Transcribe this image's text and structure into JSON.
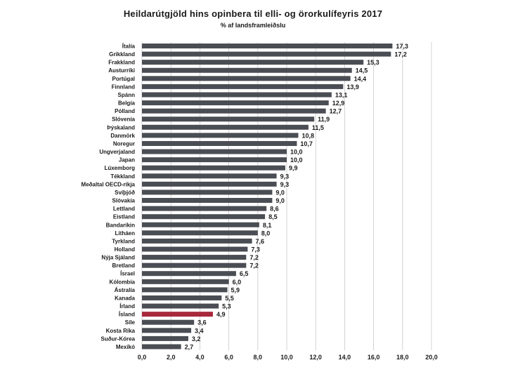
{
  "chart_data": {
    "type": "bar",
    "orientation": "horizontal",
    "title": "Heildarútgjöld hins opinbera til elli- og örorkulífeyris 2017",
    "subtitle": "% af landsframleiðslu",
    "xlim": [
      0,
      20
    ],
    "xticks": [
      "0,0",
      "2,0",
      "4,0",
      "6,0",
      "8,0",
      "10,0",
      "12,0",
      "14,0",
      "16,0",
      "18,0",
      "20,0"
    ],
    "xtick_values": [
      0,
      2,
      4,
      6,
      8,
      10,
      12,
      14,
      16,
      18,
      20
    ],
    "grid": "vertical",
    "categories": [
      "Ítalía",
      "Grikkland",
      "Frakkland",
      "Austurríki",
      "Portúgal",
      "Finnland",
      "Spánn",
      "Belgía",
      "Pólland",
      "Slóvenía",
      "Þýskaland",
      "Danmörk",
      "Noregur",
      "Ungverjaland",
      "Japan",
      "Lúxemborg",
      "Tékkland",
      "Meðaltal OECD-ríkja",
      "Svíþjóð",
      "Slóvakía",
      "Lettland",
      "Eistland",
      "Bandaríkin",
      "Litháen",
      "Tyrkland",
      "Holland",
      "Nýja Sjáland",
      "Bretland",
      "Ísrael",
      "Kólombía",
      "Ástralía",
      "Kanada",
      "Írland",
      "Ísland",
      "Síle",
      "Kosta Ríka",
      "Suður-Kórea",
      "Mexíkó"
    ],
    "values": [
      17.3,
      17.2,
      15.3,
      14.5,
      14.4,
      13.9,
      13.1,
      12.9,
      12.7,
      11.9,
      11.5,
      10.8,
      10.7,
      10.0,
      10.0,
      9.9,
      9.3,
      9.3,
      9.0,
      9.0,
      8.6,
      8.5,
      8.1,
      8.0,
      7.6,
      7.3,
      7.2,
      7.2,
      6.5,
      6.0,
      5.9,
      5.5,
      5.3,
      4.9,
      3.6,
      3.4,
      3.2,
      2.7
    ],
    "value_labels": [
      "17,3",
      "17,2",
      "15,3",
      "14,5",
      "14,4",
      "13,9",
      "13,1",
      "12,9",
      "12,7",
      "11,9",
      "11,5",
      "10,8",
      "10,7",
      "10,0",
      "10,0",
      "9,9",
      "9,3",
      "9,3",
      "9,0",
      "9,0",
      "8,6",
      "8,5",
      "8,1",
      "8,0",
      "7,6",
      "7,3",
      "7,2",
      "7,2",
      "6,5",
      "6,0",
      "5,9",
      "5,5",
      "5,3",
      "4,9",
      "3,6",
      "3,4",
      "3,2",
      "2,7"
    ],
    "highlight": "Ísland",
    "colors": {
      "bar": "#4a4d53",
      "highlight": "#a8283c",
      "grid": "#c8c8c8"
    }
  }
}
